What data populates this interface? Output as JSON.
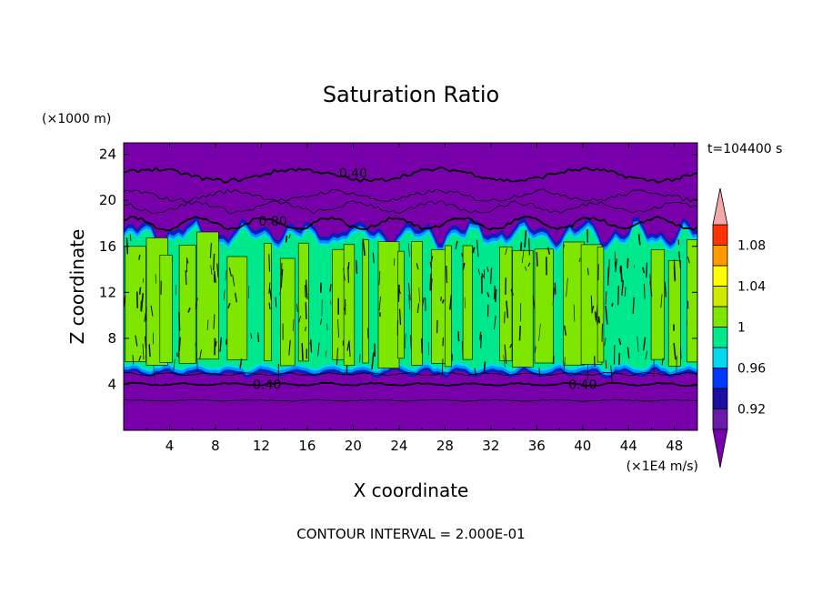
{
  "chart_data": {
    "type": "heatmap",
    "title": "Saturation Ratio",
    "xlabel": "X coordinate",
    "ylabel": "Z coordinate",
    "x_unit": "(×1E4 m/s)",
    "y_unit": "(×1000 m)",
    "time_label": "t=104400 s",
    "footer": "CONTOUR INTERVAL = 2.000E-01",
    "xlim": [
      0,
      50
    ],
    "ylim": [
      0,
      25
    ],
    "x_ticks": [
      4,
      8,
      12,
      16,
      20,
      24,
      28,
      32,
      36,
      40,
      44,
      48
    ],
    "y_ticks": [
      4,
      8,
      12,
      16,
      20,
      24
    ],
    "contour_labels": [
      {
        "text": "0.40",
        "x": 20,
        "z": 22.4
      },
      {
        "text": "0.80",
        "x": 13,
        "z": 18.2
      },
      {
        "text": "0.40",
        "x": 12.5,
        "z": 4.0
      },
      {
        "text": "0.40",
        "x": 40,
        "z": 4.0
      }
    ],
    "colorbar": {
      "levels": [
        0.9,
        0.92,
        0.94,
        0.96,
        0.98,
        1.0,
        1.02,
        1.04,
        1.06,
        1.08,
        1.1
      ],
      "tick_labels": [
        "0.92",
        "0.96",
        "1",
        "1.04",
        "1.08"
      ],
      "colors": [
        "#6a1aa8",
        "#1a0fa0",
        "#0038ff",
        "#00d8f0",
        "#00e88c",
        "#7fe600",
        "#d0e800",
        "#ffff00",
        "#ff9900",
        "#ff3300",
        "#f4a8a8"
      ],
      "under_color": "#7700aa",
      "over_color": "#f4a8a8"
    },
    "grid": false
  }
}
